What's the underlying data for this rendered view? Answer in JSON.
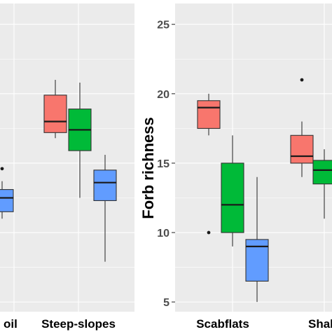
{
  "chart_data": [
    {
      "type": "box",
      "title": "",
      "ylabel": "",
      "ylim": [
        4.3,
        26.5
      ],
      "categories": [
        "Deep soil",
        "Steep-slopes"
      ],
      "visible_category_text": [
        "oil",
        "Steep-slopes"
      ],
      "grid": true,
      "series": [
        {
          "color": "#f8766d",
          "boxes": [
            {
              "category": "Steep-slopes",
              "min": 16.8,
              "q1": 17.2,
              "median": 18.0,
              "q3": 19.9,
              "max": 21.0,
              "outliers": []
            }
          ]
        },
        {
          "color": "#00ba38",
          "boxes": [
            {
              "category": "Steep-slopes",
              "min": 12.5,
              "q1": 15.9,
              "median": 17.4,
              "q3": 18.9,
              "max": 20.8,
              "outliers": []
            }
          ]
        },
        {
          "color": "#619cff",
          "boxes": [
            {
              "category": "Deep soil",
              "min": 11.0,
              "q1": 11.5,
              "median": 12.5,
              "q3": 13.1,
              "max": 13.7,
              "outliers": [
                14.6
              ]
            },
            {
              "category": "Steep-slopes",
              "min": 7.9,
              "q1": 12.3,
              "median": 13.6,
              "q3": 14.5,
              "max": 15.6,
              "outliers": []
            }
          ]
        }
      ]
    },
    {
      "type": "box",
      "title": "",
      "ylabel": "Forb richness",
      "ylim": [
        4.3,
        26.5
      ],
      "yticks": [
        5,
        10,
        15,
        20,
        25
      ],
      "categories": [
        "Scabflats",
        "Shallow"
      ],
      "visible_category_text": [
        "Scabflats",
        "Shallov"
      ],
      "grid": true,
      "series": [
        {
          "color": "#f8766d",
          "boxes": [
            {
              "category": "Scabflats",
              "min": 17.0,
              "q1": 17.5,
              "median": 19.0,
              "q3": 19.5,
              "max": 20.0,
              "outliers": [
                10.0
              ]
            },
            {
              "category": "Shallow",
              "min": 14.0,
              "q1": 15.0,
              "median": 15.5,
              "q3": 17.0,
              "max": 18.0,
              "outliers": [
                21.0
              ]
            }
          ]
        },
        {
          "color": "#00ba38",
          "boxes": [
            {
              "category": "Scabflats",
              "min": 9.0,
              "q1": 10.0,
              "median": 12.0,
              "q3": 15.0,
              "max": 17.0,
              "outliers": []
            },
            {
              "category": "Shallow",
              "min": 11.0,
              "q1": 13.5,
              "median": 14.5,
              "q3": 15.2,
              "max": 16.0,
              "outliers": []
            }
          ]
        },
        {
          "color": "#619cff",
          "boxes": [
            {
              "category": "Scabflats",
              "min": 5.0,
              "q1": 6.5,
              "median": 9.0,
              "q3": 9.5,
              "max": 14.0,
              "outliers": []
            }
          ]
        }
      ]
    }
  ]
}
